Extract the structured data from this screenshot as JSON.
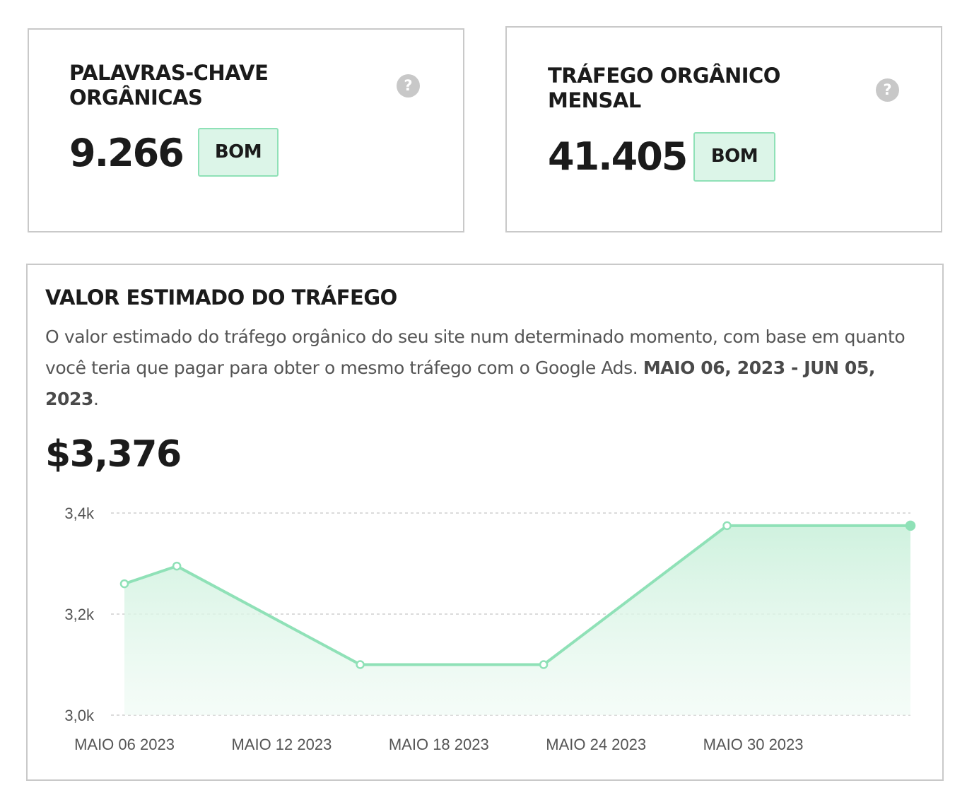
{
  "cards": [
    {
      "title_line1": "PALAVRAS-CHAVE",
      "title_line2": "ORGÂNICAS",
      "value": "9.266",
      "badge": "BOM",
      "help": "?"
    },
    {
      "title_line1": "TRÁFEGO ORGÂNICO",
      "title_line2": "MENSAL",
      "value": "41.405",
      "badge": "BOM",
      "help": "?"
    }
  ],
  "traffic_value": {
    "title": "VALOR ESTIMADO DO TRÁFEGO",
    "description": "O valor estimado do tráfego orgânico do seu site num determinado momento, com base em quanto você teria que pagar para obter o mesmo tráfego com o Google Ads.",
    "date_range": "MAIO 06, 2023 - JUN 05, 2023",
    "desc_end": ".",
    "amount": "$3,376"
  },
  "chart_data": {
    "type": "area",
    "title": "",
    "xlabel": "",
    "ylabel": "",
    "x": [
      "2023-05-06",
      "2023-05-08",
      "2023-05-15",
      "2023-05-22",
      "2023-05-29",
      "2023-06-05"
    ],
    "values": [
      3260,
      3295,
      3100,
      3100,
      3375,
      3375
    ],
    "ylim": [
      3000,
      3400
    ],
    "y_ticks": [
      3000,
      3200,
      3400
    ],
    "y_tick_labels": [
      "3,0k",
      "3,2k",
      "3,4k"
    ],
    "x_ticks": [
      "2023-05-06",
      "2023-05-12",
      "2023-05-18",
      "2023-05-24",
      "2023-05-30"
    ],
    "x_tick_labels": [
      "MAIO 06 2023",
      "MAIO 12 2023",
      "MAIO 18 2023",
      "MAIO 24 2023",
      "MAIO 30 2023"
    ],
    "grid": true,
    "legend": "none",
    "line_color": "#8fe1b7",
    "fill_color": "#dcf5e8"
  }
}
